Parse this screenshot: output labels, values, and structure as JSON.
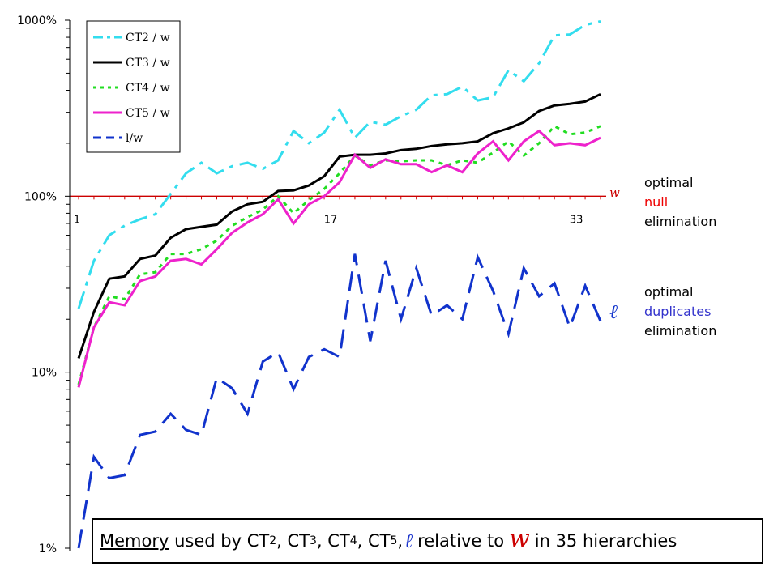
{
  "chart_data": {
    "type": "line",
    "yscale": "log",
    "ylim_percent": [
      1,
      1000
    ],
    "yticks": [
      "1%",
      "10%",
      "100%",
      "1000%"
    ],
    "x": [
      1,
      2,
      3,
      4,
      5,
      6,
      7,
      8,
      9,
      10,
      11,
      12,
      13,
      14,
      15,
      16,
      17,
      18,
      19,
      20,
      21,
      22,
      23,
      24,
      25,
      26,
      27,
      28,
      29,
      30,
      31,
      32,
      33,
      34,
      35
    ],
    "xtick_labels": [
      "1",
      "17",
      "33"
    ],
    "reference_line": {
      "label": "w",
      "value_percent": 100,
      "color": "#cc0000"
    },
    "legend_position": "top-left",
    "series": [
      {
        "name": "CT2 / w",
        "color": "#33ddee",
        "dash": "dashdot",
        "values": [
          23,
          43,
          60,
          68,
          74,
          79,
          103,
          135,
          155,
          135,
          148,
          155,
          143,
          160,
          235,
          200,
          230,
          310,
          215,
          265,
          255,
          285,
          310,
          375,
          380,
          420,
          350,
          365,
          520,
          450,
          570,
          820,
          830,
          940,
          985
        ]
      },
      {
        "name": "CT3 / w",
        "color": "#000000",
        "dash": "solid",
        "values": [
          12,
          22,
          34,
          35,
          44,
          46,
          58,
          65,
          67,
          69,
          82,
          90,
          93,
          107,
          108,
          115,
          130,
          168,
          172,
          172,
          175,
          183,
          186,
          193,
          197,
          200,
          205,
          228,
          243,
          263,
          305,
          328,
          335,
          345,
          380
        ]
      },
      {
        "name": "CT4 / w",
        "color": "#22dd22",
        "dash": "dot",
        "values": [
          8.5,
          18,
          27,
          26,
          36,
          37,
          47,
          47,
          50,
          56,
          68,
          76,
          84,
          100,
          80,
          95,
          110,
          135,
          170,
          150,
          160,
          158,
          160,
          160,
          150,
          160,
          155,
          177,
          205,
          170,
          200,
          250,
          225,
          230,
          250
        ]
      },
      {
        "name": "CT5 / w",
        "color": "#ee22cc",
        "dash": "solid",
        "values": [
          8.2,
          18,
          25,
          24,
          33,
          35,
          43,
          44,
          41,
          50,
          62,
          71,
          79,
          96,
          70,
          90,
          100,
          120,
          172,
          145,
          162,
          152,
          152,
          137,
          150,
          137,
          175,
          205,
          160,
          205,
          235,
          195,
          200,
          195,
          215
        ]
      },
      {
        "name": "l/w",
        "color": "#1133cc",
        "dash": "dash",
        "values": [
          1,
          3.3,
          2.5,
          2.6,
          4.4,
          4.6,
          5.8,
          4.7,
          4.4,
          9.3,
          8.1,
          5.8,
          11.5,
          13,
          8,
          12.2,
          13.5,
          12.2,
          47,
          15,
          43,
          20,
          39,
          21,
          24,
          20,
          45,
          29,
          16.5,
          39,
          27,
          32,
          18,
          31,
          19.5
        ]
      }
    ]
  },
  "side_notes": {
    "null_block": [
      "optimal",
      "null",
      "elimination"
    ],
    "dup_block": [
      "optimal",
      "duplicates",
      "elimination"
    ],
    "colors": {
      "null": "#ee0000",
      "duplicates": "#3333cc"
    }
  },
  "end_labels": {
    "w": "w",
    "ell": "ℓ"
  },
  "caption": {
    "memory": "Memory",
    "used_by": " used by CT",
    "s2": "2",
    "sep1": ", CT",
    "s3": "3",
    "sep2": ", CT",
    "s4": "4",
    "sep3": ", CT",
    "s5": "5",
    "sep4": ",",
    "ell": "ℓ",
    "relative": "relative to",
    "w": "w",
    "tail": "in 35 hierarchies"
  }
}
